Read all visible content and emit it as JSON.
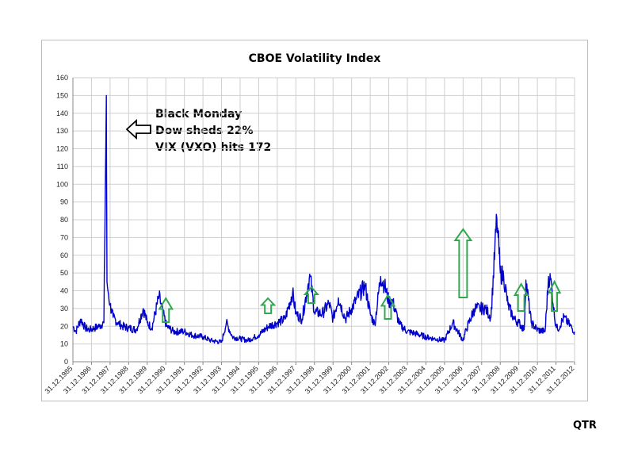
{
  "chart_data": {
    "type": "line",
    "title": "CBOE Volatility Index",
    "xlabel": "",
    "ylabel": "",
    "ylim": [
      0,
      160
    ],
    "yticks": [
      0,
      10,
      20,
      30,
      40,
      50,
      60,
      70,
      80,
      90,
      100,
      110,
      120,
      130,
      140,
      150,
      160
    ],
    "xlim": [
      "1985-12-31",
      "2012-12-31"
    ],
    "xtick_labels": [
      "31.12.1985",
      "31.12.1986",
      "31.12.1987",
      "31.12.1988",
      "31.12.1989",
      "31.12.1990",
      "31.12.1991",
      "31.12.1992",
      "31.12.1993",
      "31.12.1994",
      "31.12.1995",
      "31.12.1996",
      "31.12.1997",
      "31.12.1998",
      "31.12.1999",
      "31.12.2000",
      "31.12.2001",
      "31.12.2002",
      "31.12.2003",
      "31.12.2004",
      "31.12.2005",
      "31.12.2006",
      "31.12.2007",
      "31.12.2008",
      "31.12.2009",
      "31.12.2010",
      "31.12.2011",
      "31.12.2012"
    ],
    "grid": true,
    "line_color": "#0000cc",
    "series": [
      {
        "x": [
          "1986-01-01",
          "1986-03-01",
          "1986-06-01",
          "1986-09-01",
          "1986-12-01",
          "1987-03-01",
          "1987-06-01",
          "1987-09-01",
          "1987-10-19",
          "1987-10-22",
          "1987-11-01",
          "1987-12-01",
          "1988-01-01",
          "1988-03-01",
          "1988-06-01",
          "1988-09-01",
          "1989-01-01",
          "1989-06-01",
          "1989-10-15",
          "1990-01-01",
          "1990-04-01",
          "1990-08-20",
          "1990-11-01",
          "1991-01-15",
          "1991-06-01",
          "1992-01-01",
          "1992-06-01",
          "1993-01-01",
          "1993-06-01",
          "1994-01-01",
          "1994-04-05",
          "1994-08-01",
          "1995-01-01",
          "1995-06-01",
          "1996-01-01",
          "1996-07-15",
          "1997-01-01",
          "1997-06-01",
          "1997-10-28",
          "1998-01-01",
          "1998-05-01",
          "1998-09-01",
          "1998-10-08",
          "1999-01-01",
          "1999-06-01",
          "1999-10-15",
          "2000-01-01",
          "2000-04-15",
          "2000-09-01",
          "2001-01-01",
          "2001-04-01",
          "2001-09-20",
          "2002-01-01",
          "2002-04-01",
          "2002-07-24",
          "2002-10-10",
          "2003-01-01",
          "2003-03-15",
          "2003-08-01",
          "2004-01-01",
          "2004-06-01",
          "2005-01-01",
          "2005-06-01",
          "2006-01-01",
          "2006-06-13",
          "2007-01-01",
          "2007-03-01",
          "2007-08-15",
          "2007-11-25",
          "2008-03-15",
          "2008-07-01",
          "2008-10-24",
          "2008-11-20",
          "2009-01-01",
          "2009-03-09",
          "2009-06-01",
          "2009-10-01",
          "2010-01-01",
          "2010-04-15",
          "2010-05-20",
          "2010-09-01",
          "2011-01-01",
          "2011-06-01",
          "2011-08-08",
          "2011-10-05",
          "2011-12-01",
          "2012-02-01",
          "2012-06-04",
          "2012-12-31"
        ],
        "y": [
          20,
          17,
          24,
          19,
          18,
          19,
          20,
          22,
          150,
          110,
          45,
          38,
          32,
          25,
          22,
          20,
          19,
          18,
          30,
          22,
          19,
          37,
          28,
          20,
          17,
          17,
          15,
          14,
          12,
          11,
          22,
          14,
          13,
          12,
          15,
          20,
          22,
          24,
          39,
          27,
          24,
          44,
          48,
          28,
          27,
          33,
          24,
          36,
          24,
          30,
          35,
          43,
          27,
          21,
          48,
          43,
          34,
          34,
          21,
          17,
          16,
          14,
          13,
          12,
          22,
          12,
          18,
          30,
          30,
          30,
          25,
          81,
          70,
          50,
          48,
          32,
          24,
          22,
          18,
          46,
          22,
          18,
          17,
          48,
          44,
          25,
          18,
          25,
          17
        ]
      }
    ],
    "annotation_lines": [
      "Black Monday",
      "Dow sheds 22%",
      "VIX (VXO) hits 172"
    ],
    "arrow_dates": [
      "1991-01-01",
      "1996-07-01",
      "1998-11-01",
      "2002-12-15",
      "2007-01-01",
      "2010-02-15",
      "2011-12-01"
    ],
    "arrow_color": "#2fa84f"
  },
  "footer": {
    "label": "QTR"
  }
}
